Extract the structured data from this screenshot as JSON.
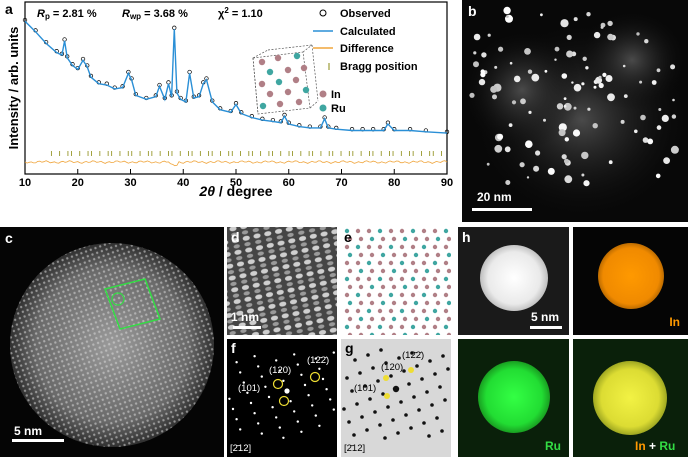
{
  "panel_labels": {
    "a": "a",
    "b": "b",
    "c": "c",
    "d": "d",
    "e": "e",
    "f": "f",
    "g": "g",
    "h": "h"
  },
  "panel_a": {
    "stats": {
      "rp_sym": "R",
      "rp_sub": "p",
      "rp_val": " = 2.81 %",
      "rwp_sym": "R",
      "rwp_sub": "wp",
      "rwp_val": " = 3.68 %",
      "chi_sym": "χ",
      "chi_sup": "2",
      "chi_val": " = 1.10"
    },
    "legend": {
      "observed": "Observed",
      "calculated": "Calculated",
      "difference": "Difference",
      "bragg": "Bragg position"
    },
    "atoms": {
      "in": "In",
      "ru": "Ru"
    },
    "colors": {
      "observed": "#000000",
      "calculated": "#2a8fd6",
      "difference": "#f0a53c",
      "bragg": "#8a8a10",
      "in": "#b07f86",
      "ru": "#3fa6a1"
    }
  },
  "chart_data": {
    "type": "line",
    "xlabel_italic": "2θ",
    "xlabel_rest": " / degree",
    "ylabel": "Intensity / arb. units",
    "xlim": [
      10,
      90
    ],
    "xticks": [
      "10",
      "20",
      "30",
      "40",
      "50",
      "60",
      "70",
      "80",
      "90"
    ],
    "series": [
      {
        "name": "Observed",
        "x": [
          10,
          12,
          14,
          16,
          17,
          17.5,
          18,
          19,
          20,
          21,
          21.8,
          22.5,
          24,
          25.5,
          27,
          28.5,
          29.6,
          30.2,
          31,
          33,
          34.8,
          35.5,
          36.5,
          37.2,
          37.8,
          38.3,
          38.8,
          39.5,
          40.5,
          41.2,
          42,
          43,
          43.8,
          44.4,
          45.5,
          47,
          49,
          50,
          51,
          53,
          55,
          57,
          58.5,
          59.2,
          60,
          62,
          64,
          66,
          66.8,
          67.5,
          69,
          72,
          74,
          76,
          78,
          78.8,
          80,
          83,
          86,
          90
        ],
        "y": [
          100,
          92,
          83,
          76,
          74,
          85,
          72,
          66,
          63,
          70,
          65,
          57,
          52,
          51,
          48,
          49,
          60,
          55,
          43,
          40,
          42,
          50,
          40,
          52,
          42,
          94,
          45,
          40,
          38,
          60,
          41,
          42,
          52,
          55,
          38,
          32,
          30,
          36,
          29,
          26,
          24,
          23,
          22,
          27,
          21,
          19,
          18,
          18,
          25,
          18,
          17,
          16,
          16,
          16,
          16,
          21,
          16,
          16,
          15,
          14
        ]
      },
      {
        "name": "Calculated",
        "x": [
          10,
          12,
          14,
          16,
          17,
          17.5,
          18,
          19,
          20,
          21,
          21.8,
          22.5,
          24,
          25.5,
          27,
          28.5,
          29.6,
          30.2,
          31,
          33,
          34.8,
          35.5,
          36.5,
          37.2,
          37.8,
          38.3,
          38.8,
          39.5,
          40.5,
          41.2,
          42,
          43,
          43.8,
          44.4,
          45.5,
          47,
          49,
          50,
          51,
          53,
          55,
          57,
          58.5,
          59.2,
          60,
          62,
          64,
          66,
          66.8,
          67.5,
          69,
          72,
          74,
          76,
          78,
          78.8,
          80,
          83,
          86,
          90
        ],
        "y": [
          99,
          91,
          82,
          75,
          73,
          84,
          71,
          65,
          62,
          69,
          64,
          56,
          51,
          50,
          47,
          48,
          59,
          54,
          42,
          39,
          41,
          49,
          39,
          51,
          41,
          93,
          44,
          39,
          37,
          59,
          40,
          41,
          51,
          54,
          37,
          31,
          29,
          35,
          28,
          25,
          23,
          22,
          21,
          26,
          20,
          18,
          17,
          17,
          24,
          17,
          16,
          15,
          15,
          15,
          15,
          20,
          15,
          15,
          14,
          13
        ]
      }
    ],
    "difference_baseline": 0,
    "bragg_count": 60
  },
  "panel_b": {
    "scalebar": "20 nm"
  },
  "panel_c": {
    "scalebar": "5 nm"
  },
  "panel_d": {
    "scalebar": "1 nm"
  },
  "panel_f": {
    "spots": {
      "s1": "(12̄2̄)",
      "s2": "(120)",
      "s3": "(101)"
    },
    "zone": "[2̄12]"
  },
  "panel_g": {
    "spots": {
      "s1": "(12̄2̄)",
      "s2": "(120)",
      "s3": "(101)"
    },
    "zone": "[2̄12]"
  },
  "panel_h": {
    "scalebar": "5 nm",
    "labels": {
      "in": "In",
      "ru": "Ru",
      "merge_in": "In",
      "merge_plus": " + ",
      "merge_ru": "Ru"
    },
    "colors": {
      "in": "#ff9900",
      "ru": "#22cc33",
      "merge": "#e6e633"
    }
  }
}
